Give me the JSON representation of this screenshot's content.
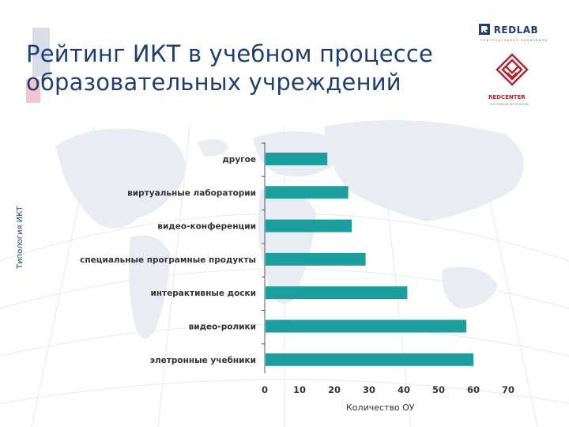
{
  "slide": {
    "title_line1": "Рейтинг ИКТ в учебном процессе",
    "title_line2": "образовательных учреждений"
  },
  "brand": {
    "redlab": "REDLAB",
    "redlab_subtitle": "п а р т н е р  с е р в и с - п р о в а й д е р",
    "redcenter": "REDCENTER",
    "redcenter_subtitle": "системный интегратор"
  },
  "colors": {
    "bar": "#1a9e9e",
    "title": "#1d3f73",
    "axis": "#555555",
    "redcenter": "#b5242f"
  },
  "chart_data": {
    "type": "bar",
    "orientation": "horizontal",
    "categories": [
      "другое",
      "виртуальные лаборатории",
      "видео-конференции",
      "специальные програмные продукты",
      "интерактивные доски",
      "видео-ролики",
      "элетронные учебники"
    ],
    "values": [
      18,
      24,
      25,
      29,
      41,
      58,
      60
    ],
    "xlabel": "Количество ОУ",
    "ylabel": "Типология ИКТ",
    "xlim": [
      0,
      70
    ],
    "xticks": [
      0,
      10,
      20,
      30,
      40,
      50,
      60,
      70
    ],
    "grid": false,
    "legend": "none"
  }
}
